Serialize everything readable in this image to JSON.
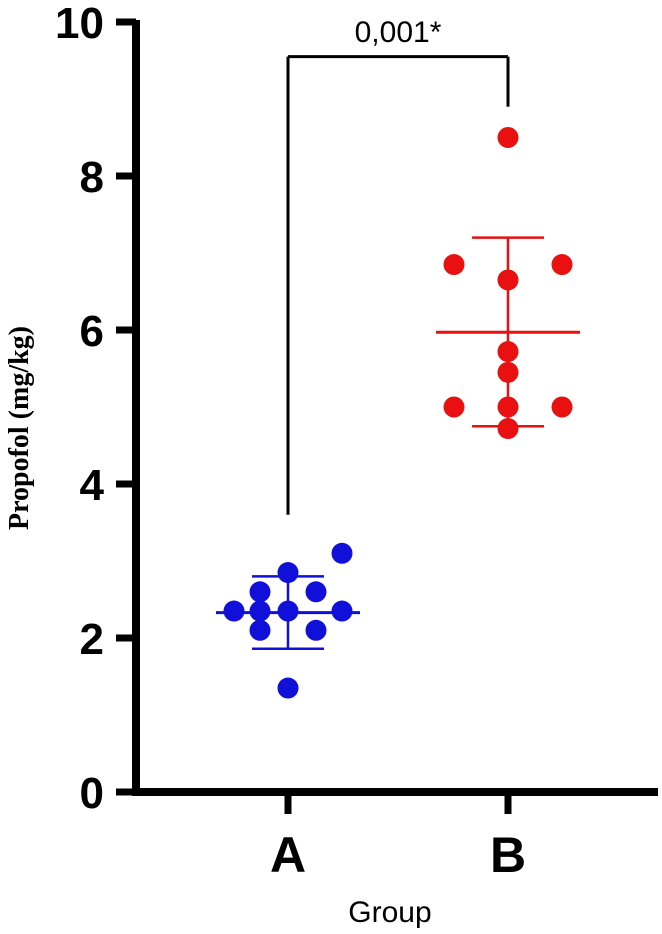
{
  "chart_data": {
    "type": "scatter",
    "title": "",
    "xlabel": "Group",
    "ylabel": "Propofol (mg/kg)",
    "ylim": [
      0,
      10
    ],
    "yticks": [
      "0",
      "2",
      "4",
      "6",
      "8",
      "10"
    ],
    "categories": [
      "A",
      "B"
    ],
    "grid": false,
    "legend": "none",
    "series": [
      {
        "category": "A",
        "color": "#1010d8",
        "points": [
          {
            "offset": -0.27,
            "value": 2.35
          },
          {
            "offset": -0.14,
            "value": 2.6
          },
          {
            "offset": 0.0,
            "value": 2.85
          },
          {
            "offset": 0.14,
            "value": 2.6
          },
          {
            "offset": 0.27,
            "value": 3.1
          },
          {
            "offset": -0.14,
            "value": 2.35
          },
          {
            "offset": 0.0,
            "value": 2.35
          },
          {
            "offset": 0.27,
            "value": 2.35
          },
          {
            "offset": -0.14,
            "value": 2.1
          },
          {
            "offset": 0.14,
            "value": 2.1
          },
          {
            "offset": 0.0,
            "value": 1.35
          }
        ],
        "mean": 2.33,
        "sd_upper": 2.8,
        "sd_lower": 1.86
      },
      {
        "category": "B",
        "color": "#e81010",
        "points": [
          {
            "offset": 0.0,
            "value": 8.5
          },
          {
            "offset": -0.27,
            "value": 6.85
          },
          {
            "offset": 0.0,
            "value": 6.65
          },
          {
            "offset": 0.27,
            "value": 6.85
          },
          {
            "offset": 0.0,
            "value": 5.72
          },
          {
            "offset": 0.0,
            "value": 5.45
          },
          {
            "offset": -0.27,
            "value": 5.0
          },
          {
            "offset": 0.0,
            "value": 5.0
          },
          {
            "offset": 0.27,
            "value": 5.0
          },
          {
            "offset": 0.0,
            "value": 4.72
          }
        ],
        "mean": 5.97,
        "sd_upper": 7.2,
        "sd_lower": 4.75
      }
    ],
    "significance": {
      "label": "0,001*",
      "left_y": 3.6,
      "right_y": 8.9,
      "bar_y": 9.55
    }
  }
}
